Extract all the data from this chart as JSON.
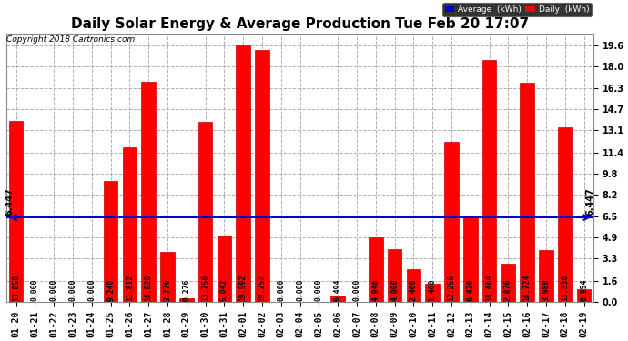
{
  "title": "Daily Solar Energy & Average Production Tue Feb 20 17:07",
  "copyright": "Copyright 2018 Cartronics.com",
  "categories": [
    "01-20",
    "01-21",
    "01-22",
    "01-23",
    "01-24",
    "01-25",
    "01-26",
    "01-27",
    "01-28",
    "01-29",
    "01-30",
    "01-31",
    "02-01",
    "02-02",
    "02-03",
    "02-04",
    "02-05",
    "02-06",
    "02-07",
    "02-08",
    "02-09",
    "02-10",
    "02-11",
    "02-12",
    "02-13",
    "02-14",
    "02-15",
    "02-16",
    "02-17",
    "02-18",
    "02-19"
  ],
  "values": [
    13.858,
    0.0,
    0.0,
    0.0,
    0.0,
    9.24,
    11.812,
    16.82,
    3.776,
    0.276,
    13.756,
    5.042,
    19.592,
    19.252,
    0.0,
    0.0,
    0.0,
    0.494,
    0.0,
    4.946,
    4.0,
    2.466,
    1.4,
    12.256,
    6.42,
    18.464,
    2.876,
    16.724,
    3.98,
    13.336,
    0.954
  ],
  "average": 6.447,
  "bar_color": "#ff0000",
  "bar_edge_color": "#cc0000",
  "average_line_color": "#0000cc",
  "bg_color": "#ffffff",
  "plot_bg_color": "#ffffff",
  "grid_color": "#b0b0b0",
  "ylim": [
    0,
    20.5
  ],
  "yticks": [
    0.0,
    1.6,
    3.3,
    4.9,
    6.5,
    8.2,
    9.8,
    11.4,
    13.1,
    14.7,
    16.3,
    18.0,
    19.6
  ],
  "title_fontsize": 11,
  "copyright_fontsize": 6.5,
  "label_fontsize": 5.8,
  "tick_fontsize": 7,
  "legend_avg_color": "#0000cc",
  "legend_daily_color": "#ff0000",
  "legend_text_color": "#ffffff"
}
